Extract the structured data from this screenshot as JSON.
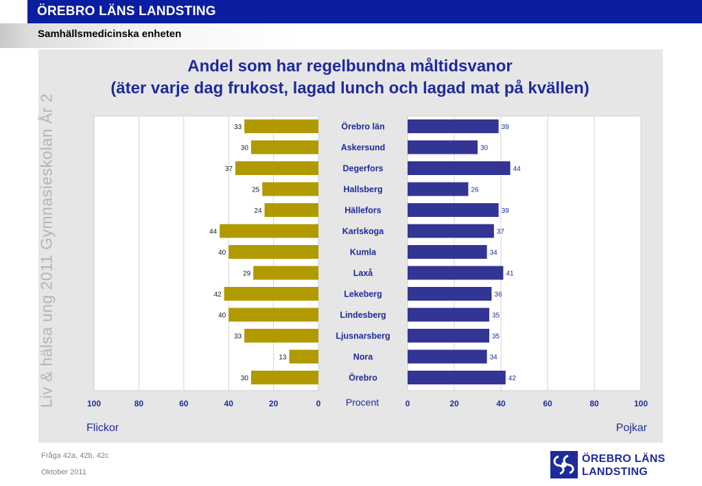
{
  "header": {
    "org_title": "ÖREBRO LÄNS LANDSTING",
    "unit_title": "Samhällsmedicinska enheten"
  },
  "side_text": "Liv & hälsa ung 2011 Gymnasieskolan År 2",
  "footer": {
    "question": "Fråga 42a, 42b, 42c",
    "date": "Oktober 2011"
  },
  "logo": {
    "line1": "ÖREBRO LÄNS",
    "line2": "LANDSTING",
    "icon": "landsting-logo-icon"
  },
  "chart_data": {
    "type": "bar",
    "orientation": "horizontal-butterfly",
    "title": "Andel som har regelbundna måltidsvanor",
    "subtitle": "(äter varje dag frukost, lagad lunch och lagad mat på kvällen)",
    "xlabel": "Procent",
    "categories": [
      "Örebro län",
      "Askersund",
      "Degerfors",
      "Hallsberg",
      "Hällefors",
      "Karlskoga",
      "Kumla",
      "Laxå",
      "Lekeberg",
      "Lindesberg",
      "Ljusnarsberg",
      "Nora",
      "Örebro"
    ],
    "series": [
      {
        "name": "Flickor",
        "side": "left",
        "color": "#b09a00",
        "values": [
          33,
          30,
          37,
          25,
          24,
          44,
          40,
          29,
          42,
          40,
          33,
          13,
          30
        ]
      },
      {
        "name": "Pojkar",
        "side": "right",
        "color": "#323594",
        "values": [
          39,
          30,
          44,
          26,
          39,
          37,
          34,
          41,
          36,
          35,
          35,
          34,
          42
        ]
      }
    ],
    "xlim": [
      0,
      100
    ],
    "left_ticks": [
      "100",
      "80",
      "60",
      "40",
      "20",
      "0"
    ],
    "right_ticks": [
      "0",
      "20",
      "40",
      "60",
      "80",
      "100"
    ],
    "grid": true
  }
}
